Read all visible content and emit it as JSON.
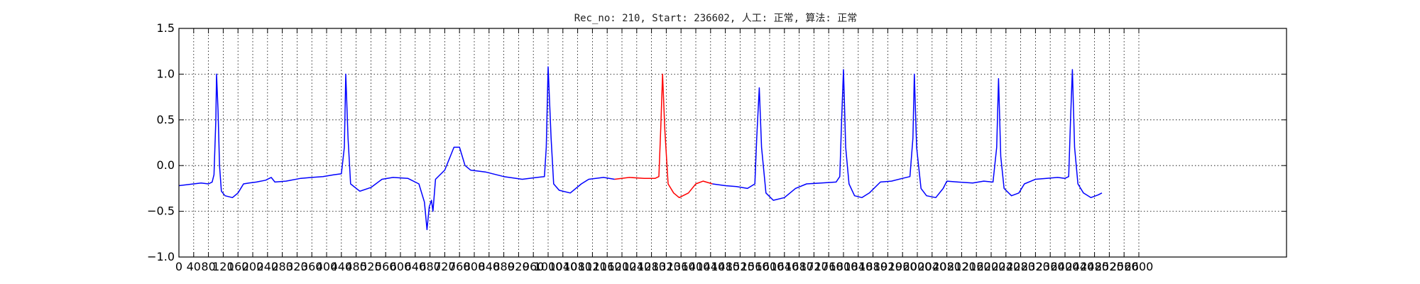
{
  "chart_data": {
    "type": "line",
    "title": "Rec_no: 210, Start: 236602, 人工: 正常, 算法: 正常",
    "xlabel": "",
    "ylabel": "",
    "xlim": [
      0,
      3000
    ],
    "ylim": [
      -1.0,
      1.5
    ],
    "grid": true,
    "y_ticks": [
      "1.5",
      "1.0",
      "0.5",
      "0.0",
      "−0.5",
      "−1.0"
    ],
    "y_tick_values": [
      1.5,
      1.0,
      0.5,
      0.0,
      -0.5,
      -1.0
    ],
    "x_ticks": [
      "0",
      "40",
      "80",
      "120",
      "160",
      "200",
      "240",
      "280",
      "320",
      "360",
      "400",
      "440",
      "480",
      "520",
      "560",
      "600",
      "640",
      "680",
      "720",
      "760",
      "800",
      "840",
      "880",
      "920",
      "960",
      "1000",
      "1040",
      "1080",
      "1120",
      "1160",
      "1200",
      "1240",
      "1280",
      "1320",
      "1360",
      "1400",
      "1440",
      "1480",
      "1520",
      "1560",
      "1600",
      "1640",
      "1680",
      "1720",
      "1760",
      "1800",
      "1840",
      "1880",
      "1920",
      "1960",
      "2000",
      "2040",
      "2080",
      "2120",
      "2160",
      "2200",
      "2240",
      "2280",
      "2320",
      "2360",
      "2400",
      "2440",
      "2480",
      "2520",
      "2560",
      "2600"
    ],
    "x_tick_values": [
      0,
      40,
      80,
      120,
      160,
      200,
      240,
      280,
      320,
      360,
      400,
      440,
      480,
      520,
      560,
      600,
      640,
      680,
      720,
      760,
      800,
      840,
      880,
      920,
      960,
      1000,
      1040,
      1080,
      1120,
      1160,
      1200,
      1240,
      1280,
      1320,
      1360,
      1400,
      1440,
      1480,
      1520,
      1560,
      1600,
      1640,
      1680,
      1720,
      1760,
      1800,
      1840,
      1880,
      1920,
      1960,
      2000,
      2040,
      2080,
      2120,
      2160,
      2200,
      2240,
      2280,
      2320,
      2360,
      2400,
      2440,
      2480,
      2520,
      2560,
      2600
    ],
    "series": [
      {
        "color": "#0000ff",
        "points": [
          [
            0,
            -0.22
          ],
          [
            40,
            -0.2
          ],
          [
            60,
            -0.19
          ],
          [
            80,
            -0.2
          ],
          [
            90,
            -0.18
          ],
          [
            95,
            -0.1
          ],
          [
            100,
            0.5
          ],
          [
            102,
            1.0
          ],
          [
            106,
            0.6
          ],
          [
            110,
            0.0
          ],
          [
            115,
            -0.28
          ],
          [
            125,
            -0.33
          ],
          [
            145,
            -0.35
          ],
          [
            160,
            -0.3
          ],
          [
            175,
            -0.2
          ],
          [
            190,
            -0.19
          ],
          [
            210,
            -0.18
          ],
          [
            235,
            -0.16
          ],
          [
            250,
            -0.13
          ],
          [
            260,
            -0.18
          ],
          [
            290,
            -0.17
          ],
          [
            330,
            -0.14
          ],
          [
            360,
            -0.13
          ],
          [
            390,
            -0.12
          ],
          [
            420,
            -0.1
          ],
          [
            440,
            -0.09
          ],
          [
            448,
            0.2
          ],
          [
            452,
            1.0
          ],
          [
            458,
            0.3
          ],
          [
            465,
            -0.2
          ],
          [
            490,
            -0.28
          ],
          [
            520,
            -0.24
          ],
          [
            550,
            -0.15
          ],
          [
            580,
            -0.13
          ],
          [
            620,
            -0.14
          ],
          [
            650,
            -0.2
          ],
          [
            665,
            -0.4
          ],
          [
            672,
            -0.7
          ],
          [
            678,
            -0.45
          ],
          [
            684,
            -0.38
          ],
          [
            688,
            -0.5
          ],
          [
            695,
            -0.15
          ],
          [
            720,
            -0.05
          ],
          [
            745,
            0.2
          ],
          [
            760,
            0.2
          ],
          [
            775,
            0.0
          ],
          [
            790,
            -0.05
          ],
          [
            830,
            -0.07
          ],
          [
            880,
            -0.12
          ],
          [
            930,
            -0.15
          ],
          [
            970,
            -0.13
          ],
          [
            990,
            -0.12
          ],
          [
            995,
            0.2
          ],
          [
            1000,
            1.08
          ],
          [
            1008,
            0.3
          ],
          [
            1015,
            -0.2
          ],
          [
            1030,
            -0.27
          ],
          [
            1060,
            -0.3
          ],
          [
            1090,
            -0.2
          ],
          [
            1110,
            -0.15
          ],
          [
            1150,
            -0.13
          ],
          [
            1180,
            -0.15
          ]
        ]
      },
      {
        "color": "#ff0000",
        "points": [
          [
            1180,
            -0.15
          ],
          [
            1220,
            -0.13
          ],
          [
            1260,
            -0.14
          ],
          [
            1290,
            -0.14
          ],
          [
            1300,
            -0.12
          ],
          [
            1305,
            0.4
          ],
          [
            1310,
            1.0
          ],
          [
            1316,
            0.4
          ],
          [
            1325,
            -0.2
          ],
          [
            1340,
            -0.3
          ],
          [
            1355,
            -0.35
          ],
          [
            1380,
            -0.3
          ],
          [
            1400,
            -0.2
          ],
          [
            1420,
            -0.17
          ],
          [
            1445,
            -0.2
          ]
        ]
      },
      {
        "color": "#0000ff",
        "points": [
          [
            1445,
            -0.2
          ],
          [
            1480,
            -0.22
          ],
          [
            1510,
            -0.23
          ],
          [
            1540,
            -0.25
          ],
          [
            1560,
            -0.2
          ],
          [
            1565,
            0.3
          ],
          [
            1572,
            0.85
          ],
          [
            1578,
            0.2
          ],
          [
            1590,
            -0.3
          ],
          [
            1610,
            -0.38
          ],
          [
            1640,
            -0.35
          ],
          [
            1670,
            -0.25
          ],
          [
            1700,
            -0.2
          ],
          [
            1740,
            -0.19
          ],
          [
            1780,
            -0.18
          ],
          [
            1790,
            -0.12
          ],
          [
            1795,
            0.5
          ],
          [
            1800,
            1.05
          ],
          [
            1806,
            0.2
          ],
          [
            1815,
            -0.2
          ],
          [
            1830,
            -0.33
          ],
          [
            1850,
            -0.35
          ],
          [
            1870,
            -0.3
          ],
          [
            1900,
            -0.18
          ],
          [
            1930,
            -0.17
          ],
          [
            1960,
            -0.14
          ],
          [
            1980,
            -0.12
          ],
          [
            1988,
            0.3
          ],
          [
            1992,
            1.0
          ],
          [
            1998,
            0.2
          ],
          [
            2010,
            -0.25
          ],
          [
            2025,
            -0.33
          ],
          [
            2050,
            -0.35
          ],
          [
            2070,
            -0.25
          ],
          [
            2080,
            -0.17
          ],
          [
            2110,
            -0.18
          ],
          [
            2150,
            -0.19
          ],
          [
            2180,
            -0.17
          ],
          [
            2205,
            -0.18
          ],
          [
            2215,
            0.2
          ],
          [
            2220,
            0.95
          ],
          [
            2226,
            0.1
          ],
          [
            2235,
            -0.25
          ],
          [
            2255,
            -0.33
          ],
          [
            2275,
            -0.3
          ],
          [
            2290,
            -0.2
          ],
          [
            2320,
            -0.15
          ],
          [
            2350,
            -0.14
          ],
          [
            2380,
            -0.13
          ],
          [
            2400,
            -0.14
          ],
          [
            2410,
            -0.12
          ],
          [
            2415,
            0.5
          ],
          [
            2420,
            1.05
          ],
          [
            2426,
            0.2
          ],
          [
            2435,
            -0.2
          ],
          [
            2450,
            -0.3
          ],
          [
            2470,
            -0.35
          ],
          [
            2490,
            -0.32
          ],
          [
            2500,
            -0.3
          ]
        ]
      }
    ]
  }
}
